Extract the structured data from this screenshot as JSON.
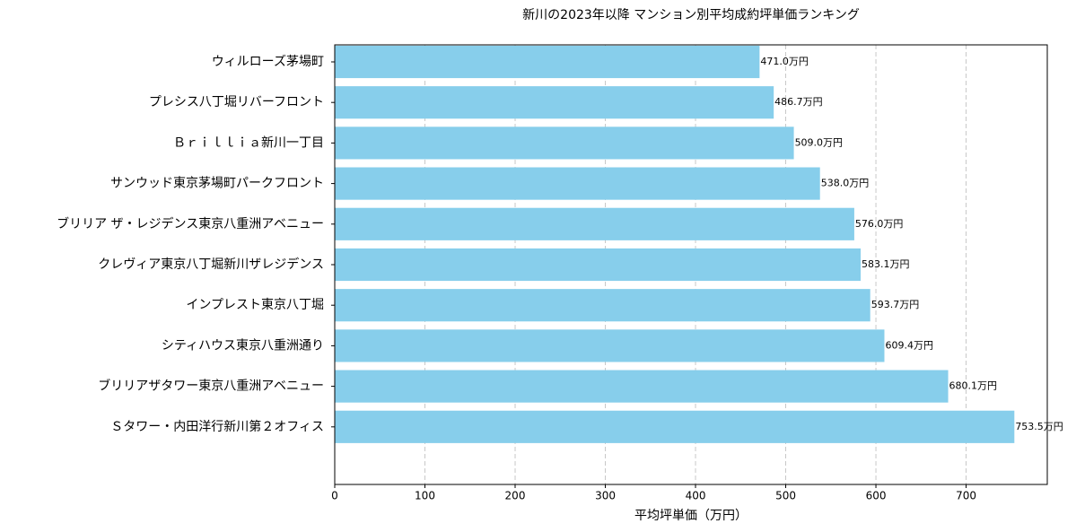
{
  "chart_data": {
    "type": "barh",
    "title": "新川の2023年以降 マンション別平均成約坪単価ランキング",
    "x_label": "平均坪単価（万円）",
    "categories": [
      "ウィルローズ茅場町",
      "プレシス八丁堀リバーフロント",
      "Ｂｒｉｌｌｉａ新川一丁目",
      "サンウッド東京茅場町パークフロント",
      "ブリリア ザ・レジデンス東京八重洲アベニュー",
      "クレヴィア東京八丁堀新川ザレジデンス",
      "インプレスト東京八丁堀",
      "シティハウス東京八重洲通り",
      "ブリリアザタワー東京八重洲アベニュー",
      "Ｓタワー・内田洋行新川第２オフィス"
    ],
    "values": [
      471.0,
      486.7,
      509.0,
      538.0,
      576.0,
      583.1,
      593.7,
      609.4,
      680.1,
      753.5
    ],
    "value_labels": [
      "471.0万円",
      "486.7万円",
      "509.0万円",
      "538.0万円",
      "576.0万円",
      "583.1万円",
      "593.7万円",
      "609.4万円",
      "680.1万円",
      "753.5万円"
    ],
    "color": "#87ceeb",
    "xlim": [
      0,
      790
    ],
    "xticks": [
      0,
      100,
      200,
      300,
      400,
      500,
      600,
      700
    ],
    "grid": true
  }
}
